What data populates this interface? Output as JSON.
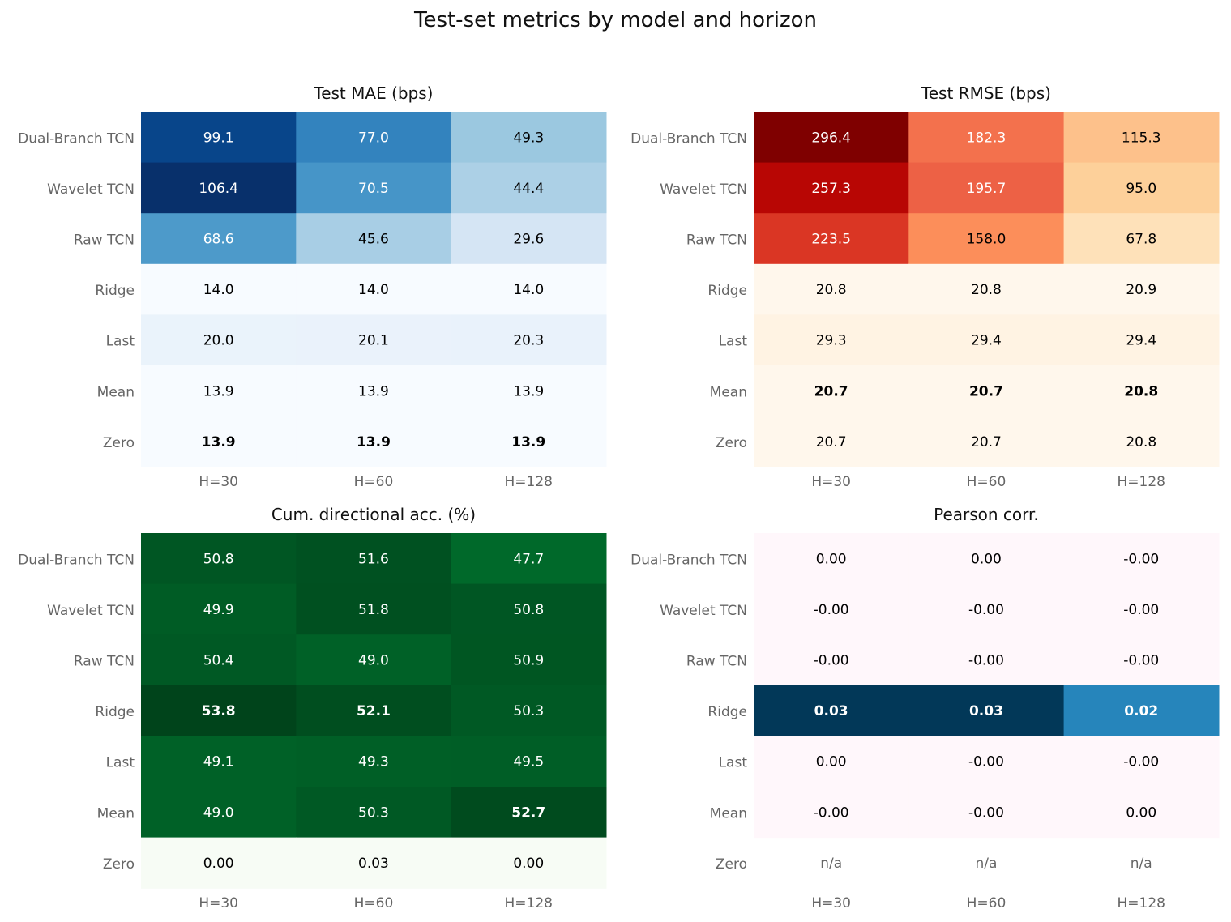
{
  "title": "Test-set metrics by model and horizon",
  "chart_data": [
    {
      "type": "heatmap",
      "title": "Test MAE (bps)",
      "rows": [
        "Dual-Branch TCN",
        "Wavelet TCN",
        "Raw TCN",
        "Ridge",
        "Last",
        "Mean",
        "Zero"
      ],
      "columns": [
        "H=30",
        "H=60",
        "H=128"
      ],
      "values": [
        [
          99.1,
          77.0,
          49.3
        ],
        [
          106.4,
          70.5,
          44.4
        ],
        [
          68.6,
          45.6,
          29.6
        ],
        [
          14.0,
          14.0,
          14.0
        ],
        [
          20.0,
          20.1,
          20.3
        ],
        [
          13.9,
          13.9,
          13.9
        ],
        [
          13.9,
          13.9,
          13.9
        ]
      ],
      "labels": [
        [
          "99.1",
          "77.0",
          "49.3"
        ],
        [
          "106.4",
          "70.5",
          "44.4"
        ],
        [
          "68.6",
          "45.6",
          "29.6"
        ],
        [
          "14.0",
          "14.0",
          "14.0"
        ],
        [
          "20.0",
          "20.1",
          "20.3"
        ],
        [
          "13.9",
          "13.9",
          "13.9"
        ],
        [
          "13.9",
          "13.9",
          "13.9"
        ]
      ],
      "best": [
        [
          6,
          0
        ],
        [
          6,
          1
        ],
        [
          6,
          2
        ]
      ],
      "colormap": "Blues"
    },
    {
      "type": "heatmap",
      "title": "Test RMSE (bps)",
      "rows": [
        "Dual-Branch TCN",
        "Wavelet TCN",
        "Raw TCN",
        "Ridge",
        "Last",
        "Mean",
        "Zero"
      ],
      "columns": [
        "H=30",
        "H=60",
        "H=128"
      ],
      "values": [
        [
          296.4,
          182.3,
          115.3
        ],
        [
          257.3,
          195.7,
          95.0
        ],
        [
          223.5,
          158.0,
          67.8
        ],
        [
          20.8,
          20.8,
          20.9
        ],
        [
          29.3,
          29.4,
          29.4
        ],
        [
          20.7,
          20.7,
          20.8
        ],
        [
          20.7,
          20.7,
          20.8
        ]
      ],
      "labels": [
        [
          "296.4",
          "182.3",
          "115.3"
        ],
        [
          "257.3",
          "195.7",
          "95.0"
        ],
        [
          "223.5",
          "158.0",
          "67.8"
        ],
        [
          "20.8",
          "20.8",
          "20.9"
        ],
        [
          "29.3",
          "29.4",
          "29.4"
        ],
        [
          "20.7",
          "20.7",
          "20.8"
        ],
        [
          "20.7",
          "20.7",
          "20.8"
        ]
      ],
      "best": [
        [
          5,
          0
        ],
        [
          5,
          1
        ],
        [
          5,
          2
        ]
      ],
      "colormap": "OrRd"
    },
    {
      "type": "heatmap",
      "title": "Cum. directional acc. (%)",
      "rows": [
        "Dual-Branch TCN",
        "Wavelet TCN",
        "Raw TCN",
        "Ridge",
        "Last",
        "Mean",
        "Zero"
      ],
      "columns": [
        "H=30",
        "H=60",
        "H=128"
      ],
      "values": [
        [
          50.8,
          51.6,
          47.7
        ],
        [
          49.9,
          51.8,
          50.8
        ],
        [
          50.4,
          49.0,
          50.9
        ],
        [
          53.8,
          52.1,
          50.3
        ],
        [
          49.1,
          49.3,
          49.5
        ],
        [
          49.0,
          50.3,
          52.7
        ],
        [
          0.0,
          0.03,
          0.0
        ]
      ],
      "labels": [
        [
          "50.8",
          "51.6",
          "47.7"
        ],
        [
          "49.9",
          "51.8",
          "50.8"
        ],
        [
          "50.4",
          "49.0",
          "50.9"
        ],
        [
          "53.8",
          "52.1",
          "50.3"
        ],
        [
          "49.1",
          "49.3",
          "49.5"
        ],
        [
          "49.0",
          "50.3",
          "52.7"
        ],
        [
          "0.00",
          "0.03",
          "0.00"
        ]
      ],
      "best": [
        [
          3,
          0
        ],
        [
          3,
          1
        ],
        [
          5,
          2
        ]
      ],
      "colormap": "Greens"
    },
    {
      "type": "heatmap",
      "title": "Pearson corr.",
      "rows": [
        "Dual-Branch TCN",
        "Wavelet TCN",
        "Raw TCN",
        "Ridge",
        "Last",
        "Mean",
        "Zero"
      ],
      "columns": [
        "H=30",
        "H=60",
        "H=128"
      ],
      "values": [
        [
          0.0,
          0.0,
          -0.0
        ],
        [
          -0.0,
          -0.0,
          -0.0
        ],
        [
          -0.0,
          -0.0,
          -0.0
        ],
        [
          0.03,
          0.03,
          0.02
        ],
        [
          0.0,
          -0.0,
          -0.0
        ],
        [
          -0.0,
          -0.0,
          0.0
        ],
        [
          null,
          null,
          null
        ]
      ],
      "labels": [
        [
          "0.00",
          "0.00",
          "-0.00"
        ],
        [
          "-0.00",
          "-0.00",
          "-0.00"
        ],
        [
          "-0.00",
          "-0.00",
          "-0.00"
        ],
        [
          "0.03",
          "0.03",
          "0.02"
        ],
        [
          "0.00",
          "-0.00",
          "-0.00"
        ],
        [
          "-0.00",
          "-0.00",
          "0.00"
        ],
        [
          "n/a",
          "n/a",
          "n/a"
        ]
      ],
      "best": [
        [
          3,
          0
        ],
        [
          3,
          1
        ],
        [
          3,
          2
        ]
      ],
      "colormap": "PuBu"
    }
  ]
}
